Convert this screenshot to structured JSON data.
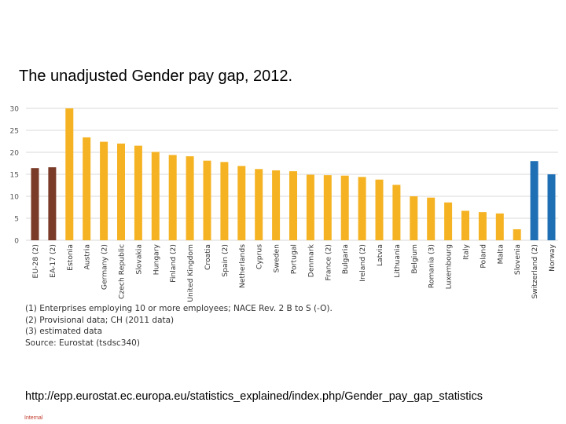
{
  "slide": {
    "title": "The unadjusted Gender pay gap, 2012.",
    "url": "http://epp.eurostat.ec.europa.eu/statistics_explained/index.php/Gender_pay_gap_statistics",
    "classification": "Internal"
  },
  "notes": [
    "(1) Enterprises employing 10 or more employees; NACE Rev. 2 B to S (-O).",
    "(2) Provisional data; CH (2011 data)",
    "(3) estimated data",
    "Source: Eurostat (tsdsc340)"
  ],
  "colors": {
    "eu_aggregate": "#7a3b28",
    "member_state": "#f5b323",
    "non_eu": "#1f6fb5",
    "grid": "#d9d9d9",
    "axis_text": "#555555"
  },
  "chart_data": {
    "type": "bar",
    "title": "",
    "xlabel": "",
    "ylabel": "",
    "ylim": [
      0,
      30
    ],
    "yticks": [
      0,
      5,
      10,
      15,
      20,
      25,
      30
    ],
    "grid": true,
    "legend": "none",
    "categories": [
      "EU-28 (2)",
      "EA-17 (2)",
      "Estonia",
      "Austria",
      "Germany (2)",
      "Czech Republic",
      "Slovakia",
      "Hungary",
      "Finland (2)",
      "United Kingdom",
      "Croatia",
      "Spain (2)",
      "Netherlands",
      "Cyprus",
      "Sweden",
      "Portugal",
      "Denmark",
      "France (2)",
      "Bulgaria",
      "Ireland (2)",
      "Latvia",
      "Lithuania",
      "Belgium",
      "Romania (3)",
      "Luxembourg",
      "Italy",
      "Poland",
      "Malta",
      "Slovenia",
      "Switzerland (2)",
      "Norway"
    ],
    "values": [
      16.4,
      16.6,
      30.0,
      23.4,
      22.4,
      22.0,
      21.5,
      20.1,
      19.4,
      19.1,
      18.1,
      17.8,
      16.9,
      16.2,
      15.9,
      15.7,
      14.9,
      14.8,
      14.7,
      14.4,
      13.8,
      12.6,
      10.0,
      9.7,
      8.6,
      6.7,
      6.4,
      6.1,
      2.5,
      18.0,
      15.0
    ],
    "groups": [
      "eu_aggregate",
      "eu_aggregate",
      "member_state",
      "member_state",
      "member_state",
      "member_state",
      "member_state",
      "member_state",
      "member_state",
      "member_state",
      "member_state",
      "member_state",
      "member_state",
      "member_state",
      "member_state",
      "member_state",
      "member_state",
      "member_state",
      "member_state",
      "member_state",
      "member_state",
      "member_state",
      "member_state",
      "member_state",
      "member_state",
      "member_state",
      "member_state",
      "member_state",
      "member_state",
      "non_eu",
      "non_eu"
    ]
  }
}
